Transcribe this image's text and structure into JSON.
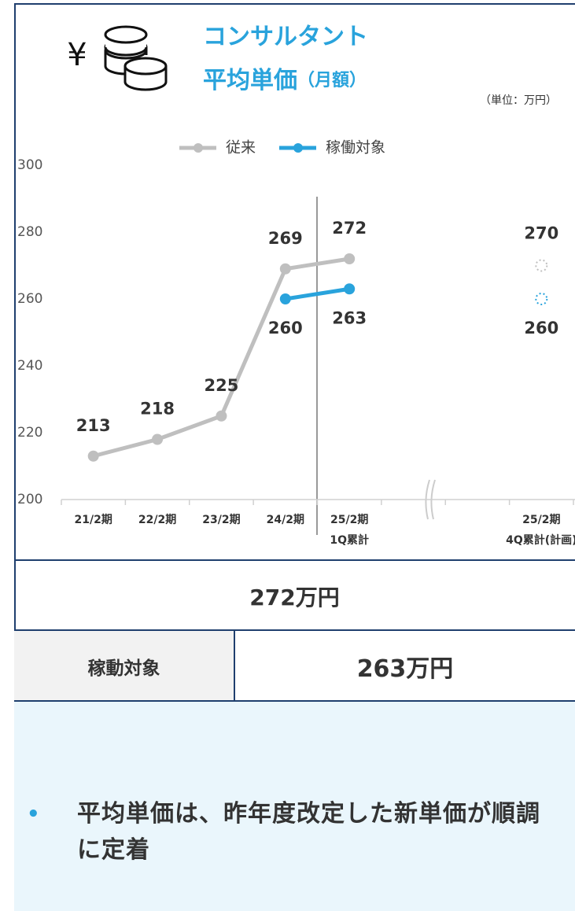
{
  "icon_symbol": "¥",
  "chart_data": {
    "type": "line",
    "title": [
      "コンサルタント",
      "平均単価",
      "（月額）"
    ],
    "unit": "（単位：万円）",
    "categories": [
      "21/2期",
      "22/2期",
      "23/2期",
      "24/2期",
      [
        "25/2期",
        "1Q累計"
      ],
      null,
      null,
      [
        "25/2期",
        "4Q累計(計画)"
      ]
    ],
    "series": [
      {
        "name": "従来",
        "color": "#bfbfbf",
        "values": [
          213,
          218,
          225,
          269,
          272,
          null,
          null,
          270
        ]
      },
      {
        "name": "稼働対象",
        "color": "#29a3dc",
        "values": [
          null,
          null,
          null,
          260,
          263,
          null,
          null,
          260
        ]
      }
    ],
    "ylim": [
      200,
      300
    ],
    "yticks": [
      200,
      220,
      240,
      260,
      280,
      300
    ],
    "grid": false,
    "legend": "top"
  },
  "summary": {
    "total": "272万円",
    "label": "稼動対象",
    "value": "263万円"
  },
  "note": "平均単価は、昨年度改定した新単価が順調に定着"
}
